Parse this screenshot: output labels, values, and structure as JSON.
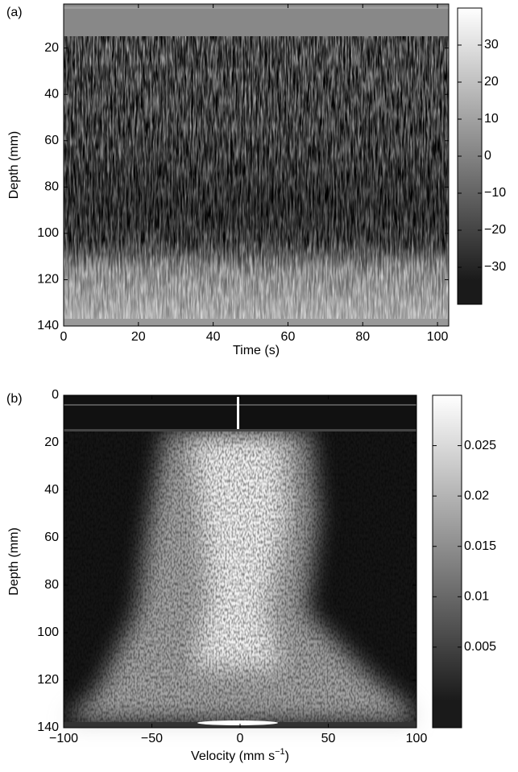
{
  "chart_data": [
    {
      "type": "heatmap",
      "panel_label": "(a)",
      "ylabel": "Depth (mm)",
      "xlabel": "Time (s)",
      "xlim": [
        0,
        103
      ],
      "xticks": [
        0,
        20,
        40,
        60,
        80,
        100
      ],
      "ylim": [
        140,
        1
      ],
      "yticks": [
        20,
        40,
        60,
        80,
        100,
        120,
        140
      ],
      "colorbar": {
        "lim": [
          -40,
          40
        ],
        "ticks": [
          30,
          20,
          10,
          0,
          {
            "value": -10,
            "label": "−10"
          },
          {
            "value": -20,
            "label": "−20"
          },
          {
            "value": -30,
            "label": "−30"
          }
        ]
      }
    },
    {
      "type": "heatmap",
      "panel_label": "(b)",
      "ylabel": "Depth (mm)",
      "xlabel": {
        "text": "Velocity (mm s",
        "superscript": "−1",
        "suffix": ")"
      },
      "xlim": [
        -100,
        100
      ],
      "xticks": [
        {
          "value": -100,
          "label": "−100"
        },
        {
          "value": -50,
          "label": "−50"
        },
        0,
        50,
        100
      ],
      "ylim": [
        140,
        0
      ],
      "yticks": [
        0,
        20,
        40,
        60,
        80,
        100,
        120,
        140
      ],
      "colorbar": {
        "lim": [
          -0.003,
          0.03
        ],
        "ticks": [
          0.025,
          0.02,
          0.015,
          0.01,
          0.005
        ]
      }
    }
  ]
}
